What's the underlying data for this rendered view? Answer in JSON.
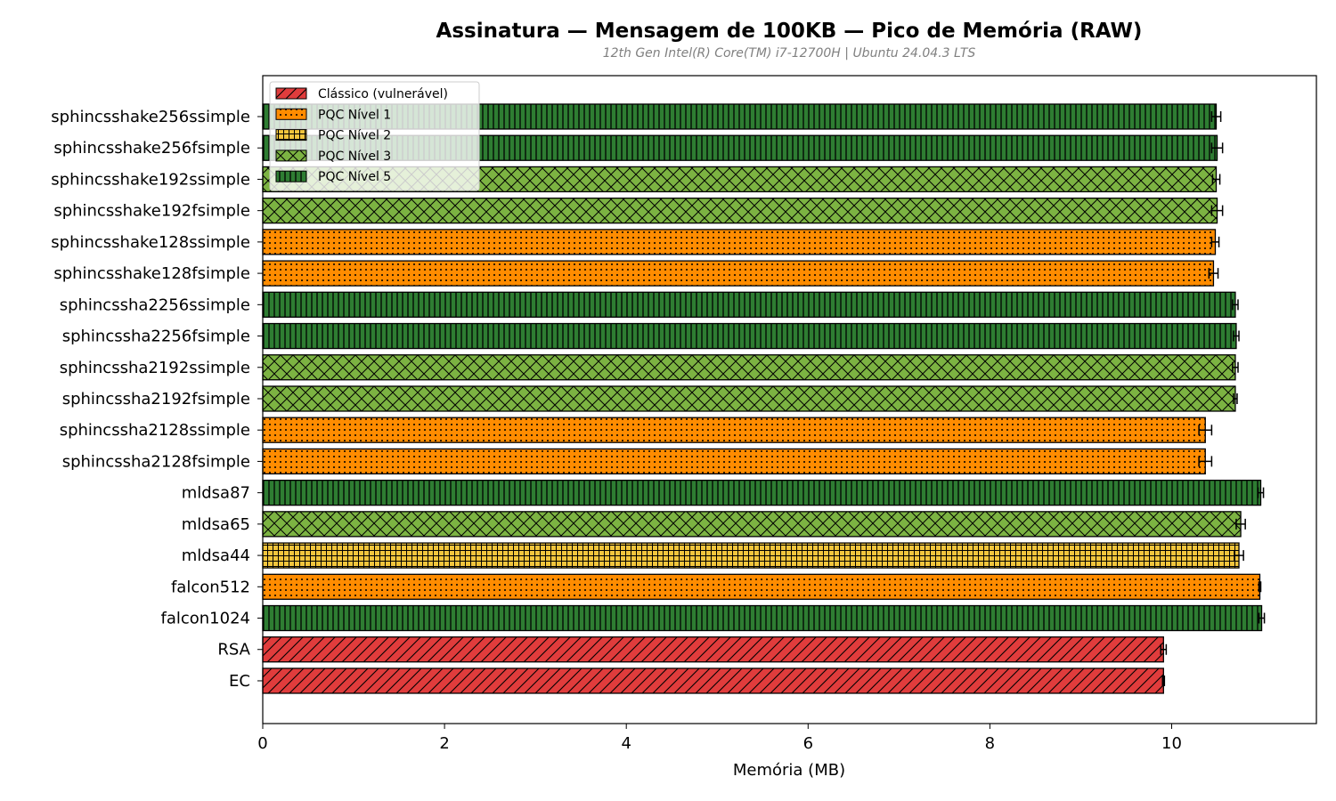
{
  "chart_data": {
    "type": "bar",
    "orientation": "horizontal",
    "title": "Assinatura — Mensagem de 100KB — Pico de Memória (RAW)",
    "subtitle": "12th Gen Intel(R) Core(TM) i7-12700H | Ubuntu 24.04.3 LTS",
    "xlabel": "Memória (MB)",
    "ylabel": "",
    "xlim": [
      0,
      11.6
    ],
    "xticks": [
      "0",
      "2",
      "4",
      "6",
      "8",
      "10"
    ],
    "grid": false,
    "legend_position": "upper-left",
    "legend": [
      {
        "key": "classico",
        "label": "Clássico (vulnerável)",
        "color": "#e03c3c",
        "hatch": "diagonal"
      },
      {
        "key": "n1",
        "label": "PQC Nível 1",
        "color": "#ff8c00",
        "hatch": "dots"
      },
      {
        "key": "n2",
        "label": "PQC Nível 2",
        "color": "#f2c53d",
        "hatch": "grid"
      },
      {
        "key": "n3",
        "label": "PQC Nível 3",
        "color": "#7cb342",
        "hatch": "crosshatch"
      },
      {
        "key": "n5",
        "label": "PQC Nível 5",
        "color": "#2e7d32",
        "hatch": "vertical"
      }
    ],
    "bars": [
      {
        "label": "sphincsshake256ssimple",
        "value": 10.49,
        "err": 0.05,
        "group": "n5"
      },
      {
        "label": "sphincsshake256fsimple",
        "value": 10.5,
        "err": 0.06,
        "group": "n5"
      },
      {
        "label": "sphincsshake192ssimple",
        "value": 10.49,
        "err": 0.04,
        "group": "n3"
      },
      {
        "label": "sphincsshake192fsimple",
        "value": 10.5,
        "err": 0.06,
        "group": "n3"
      },
      {
        "label": "sphincsshake128ssimple",
        "value": 10.48,
        "err": 0.04,
        "group": "n1"
      },
      {
        "label": "sphincsshake128fsimple",
        "value": 10.46,
        "err": 0.05,
        "group": "n1"
      },
      {
        "label": "sphincssha2256ssimple",
        "value": 10.7,
        "err": 0.03,
        "group": "n5"
      },
      {
        "label": "sphincssha2256fsimple",
        "value": 10.71,
        "err": 0.03,
        "group": "n5"
      },
      {
        "label": "sphincssha2192ssimple",
        "value": 10.7,
        "err": 0.03,
        "group": "n3"
      },
      {
        "label": "sphincssha2192fsimple",
        "value": 10.7,
        "err": 0.02,
        "group": "n3"
      },
      {
        "label": "sphincssha2128ssimple",
        "value": 10.37,
        "err": 0.07,
        "group": "n1"
      },
      {
        "label": "sphincssha2128fsimple",
        "value": 10.37,
        "err": 0.07,
        "group": "n1"
      },
      {
        "label": "mldsa87",
        "value": 10.98,
        "err": 0.03,
        "group": "n5"
      },
      {
        "label": "mldsa65",
        "value": 10.76,
        "err": 0.05,
        "group": "n3"
      },
      {
        "label": "mldsa44",
        "value": 10.74,
        "err": 0.05,
        "group": "n2"
      },
      {
        "label": "falcon512",
        "value": 10.97,
        "err": 0.01,
        "group": "n1"
      },
      {
        "label": "falcon1024",
        "value": 10.99,
        "err": 0.03,
        "group": "n5"
      },
      {
        "label": "RSA",
        "value": 9.91,
        "err": 0.03,
        "group": "classico"
      },
      {
        "label": "EC",
        "value": 9.91,
        "err": 0.01,
        "group": "classico"
      }
    ]
  }
}
